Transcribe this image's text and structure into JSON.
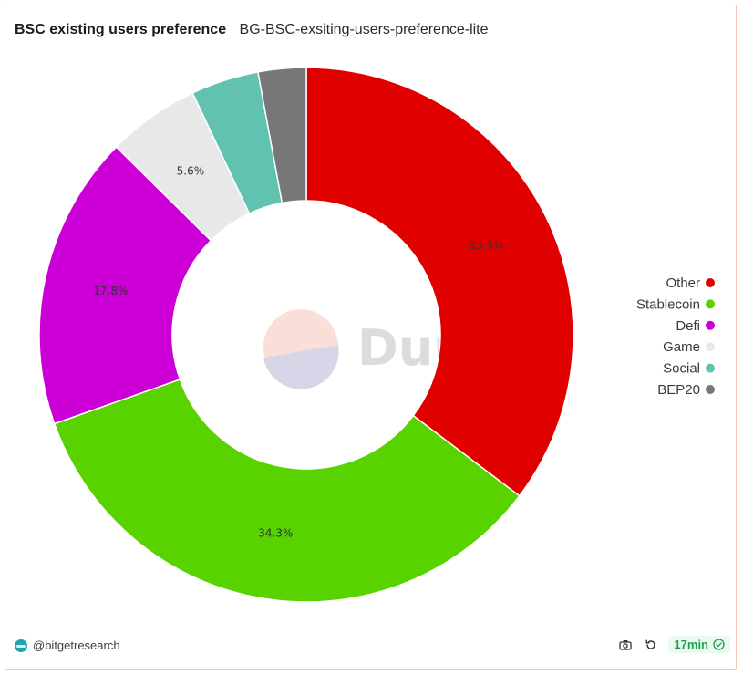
{
  "header": {
    "title": "BSC existing users preference",
    "subtitle": "BG-BSC-exsiting-users-preference-lite"
  },
  "watermark": {
    "text": "Dune"
  },
  "footer": {
    "author": "@bitgetresearch",
    "refresh_age": "17min"
  },
  "chart_data": {
    "type": "pie",
    "donut": true,
    "legend_position": "right",
    "labels": [
      "Other",
      "Stablecoin",
      "Defi",
      "Game",
      "Social",
      "BEP20"
    ],
    "values": [
      35.3,
      34.3,
      17.8,
      5.6,
      4.1,
      2.9
    ],
    "colors": [
      "#e00000",
      "#59d300",
      "#cc00d6",
      "#e8e8e8",
      "#62c2b2",
      "#777777"
    ],
    "data_labels": [
      "35.3%",
      "34.3%",
      "17.8%",
      "5.6%",
      "",
      ""
    ]
  }
}
